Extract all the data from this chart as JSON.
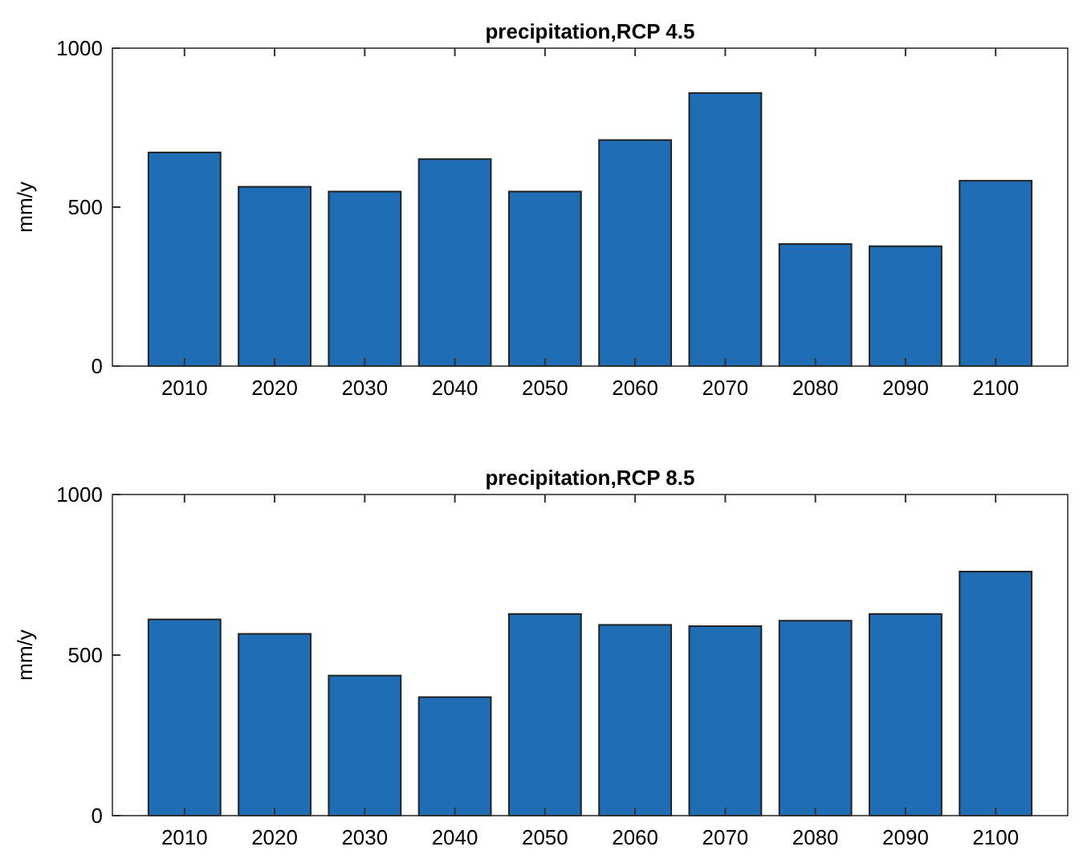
{
  "chart_data": [
    {
      "type": "bar",
      "title": "precipitation,RCP 4.5",
      "ylabel": "mm/y",
      "categories": [
        "2010",
        "2020",
        "2030",
        "2040",
        "2050",
        "2060",
        "2070",
        "2080",
        "2090",
        "2100"
      ],
      "values": [
        672,
        564,
        549,
        651,
        549,
        711,
        859,
        384,
        377,
        583
      ],
      "color": "#1f6db4",
      "ylim": [
        0,
        1000
      ],
      "yticks": [
        0,
        500,
        1000
      ],
      "grid": false
    },
    {
      "type": "bar",
      "title": "precipitation,RCP 8.5",
      "ylabel": "mm/y",
      "categories": [
        "2010",
        "2020",
        "2030",
        "2040",
        "2050",
        "2060",
        "2070",
        "2080",
        "2090",
        "2100"
      ],
      "values": [
        611,
        566,
        436,
        369,
        628,
        594,
        590,
        607,
        628,
        760
      ],
      "color": "#1f6db4",
      "ylim": [
        0,
        1000
      ],
      "yticks": [
        0,
        500,
        1000
      ],
      "grid": false
    }
  ]
}
